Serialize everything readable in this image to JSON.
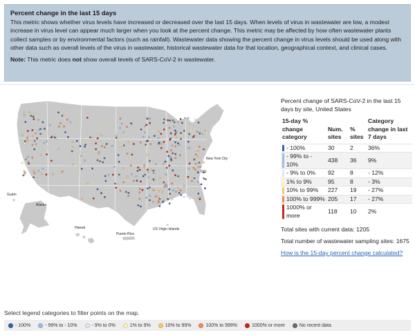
{
  "info": {
    "title": "Percent change in the last 15 days",
    "body": "This metric shows whether virus levels have increased or decreased over the last 15 days. When levels of virus in wastewater are low, a modest increase in virus level can appear much larger when you look at the percent change. This metric may be affected by how often wastewater plants collect samples or by environmental factors (such as rainfall). Wastewater data showing the percent change in virus levels should be used along with other data such as overall levels of the virus in wastewater, historical wastewater data for that location, geographical context, and clinical cases.",
    "note_label": "Note:",
    "note_before": "This metric does",
    "note_emphasis": "not",
    "note_after": "show overall levels of SARS-CoV-2 in wastewater."
  },
  "map": {
    "labels": {
      "new_york": "New York City",
      "dc": "DC",
      "guam": "Guam",
      "alaska": "Alaska",
      "hawaii": "Hawaii",
      "puerto_rico": "Puerto Rico",
      "usvi": "US Virgin Islands"
    },
    "colors": {
      "land": "#c9c9c9",
      "border": "#ffffff"
    }
  },
  "table": {
    "title": "Percent change of SARS-CoV-2 in the last 15 days by site, United States",
    "headers": {
      "category": "15-day % change category",
      "sites": "Num. sites",
      "pct": "% sites",
      "change": "Category change in last 7 days"
    },
    "rows": [
      {
        "category": "- 100%",
        "sites": "30",
        "pct": "2",
        "change": "36%",
        "color": "#3a5fa5"
      },
      {
        "category": "- 99% to - 10%",
        "sites": "438",
        "pct": "36",
        "change": "9%",
        "color": "#9fbde0"
      },
      {
        "category": "- 9% to 0%",
        "sites": "92",
        "pct": "8",
        "change": "- 12%",
        "color": "#dbe8f4"
      },
      {
        "category": "1% to 9%",
        "sites": "95",
        "pct": "8",
        "change": "- 3%",
        "color": "#fff3b8"
      },
      {
        "category": "10% to 99%",
        "sites": "227",
        "pct": "19",
        "change": "- 27%",
        "color": "#f9c86e"
      },
      {
        "category": "100% to 999%",
        "sites": "205",
        "pct": "17",
        "change": "- 27%",
        "color": "#f08b57"
      },
      {
        "category": "1000% or more",
        "sites": "118",
        "pct": "10",
        "change": "2%",
        "color": "#c5281c"
      }
    ],
    "total_current": "Total sites with current data: 1205",
    "total_sampling": "Total number of wastewater sampling sites: 1675",
    "calc_link": "How is the 15-day percent change calculated?"
  },
  "filter": {
    "instruction": "Select legend categories to filter points on the map.",
    "items": [
      {
        "label": "- 100%",
        "color": "#3a5fa5"
      },
      {
        "label": "- 99% to - 10%",
        "color": "#9fbde0"
      },
      {
        "label": "- 9% to 0%",
        "color": "#dbe8f4"
      },
      {
        "label": "1% to 9%",
        "color": "#fff3b8"
      },
      {
        "label": "10% to 99%",
        "color": "#f9c86e"
      },
      {
        "label": "100% to 999%",
        "color": "#f08b57"
      },
      {
        "label": "1000% or more",
        "color": "#c5281c"
      },
      {
        "label": "No recent data",
        "color": "#6b6b6b"
      }
    ]
  }
}
